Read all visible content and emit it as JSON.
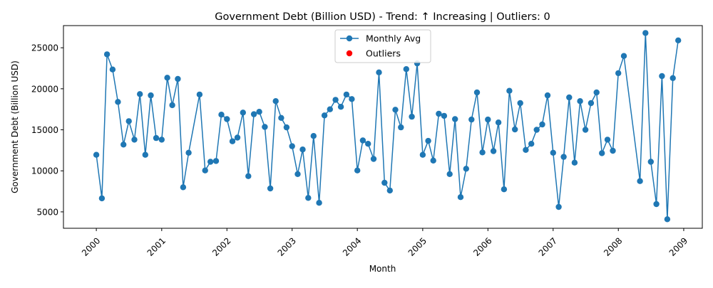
{
  "chart_data": {
    "type": "line",
    "title": "Government Debt (Billion USD) - Trend: ↑ Increasing | Outliers: 0",
    "xlabel": "Month",
    "ylabel": "Government Debt (Billion USD)",
    "xlim": [
      "1999-07-01",
      "2009-04-15"
    ],
    "ylim": [
      3000,
      27700
    ],
    "x_ticks": [
      "2000",
      "2001",
      "2002",
      "2003",
      "2004",
      "2005",
      "2006",
      "2007",
      "2008",
      "2009"
    ],
    "y_ticks": [
      "5000",
      "10000",
      "15000",
      "20000",
      "25000"
    ],
    "grid": false,
    "legend_position": "top-center",
    "legend": [
      "Monthly Avg",
      "Outliers"
    ],
    "colors": {
      "series": "#1f77b4",
      "outliers": "#ff0000"
    },
    "series": [
      {
        "name": "Monthly Avg",
        "x": [
          "2000-01-01",
          "2000-02-01",
          "2000-03-01",
          "2000-04-01",
          "2000-05-01",
          "2000-06-01",
          "2000-07-01",
          "2000-08-01",
          "2000-09-01",
          "2000-10-01",
          "2000-11-01",
          "2000-12-01",
          "2001-01-01",
          "2001-02-01",
          "2001-03-01",
          "2001-04-01",
          "2001-05-01",
          "2001-06-01",
          "2001-08-01",
          "2001-09-01",
          "2001-10-01",
          "2001-11-01",
          "2001-12-01",
          "2002-01-01",
          "2002-02-01",
          "2002-03-01",
          "2002-04-01",
          "2002-05-01",
          "2002-06-01",
          "2002-07-01",
          "2002-08-01",
          "2002-09-01",
          "2002-10-01",
          "2002-11-01",
          "2002-12-01",
          "2003-01-01",
          "2003-02-01",
          "2003-03-01",
          "2003-04-01",
          "2003-05-01",
          "2003-06-01",
          "2003-07-01",
          "2003-08-01",
          "2003-09-01",
          "2003-10-01",
          "2003-11-01",
          "2003-12-01",
          "2004-01-01",
          "2004-02-01",
          "2004-03-01",
          "2004-04-01",
          "2004-05-01",
          "2004-06-01",
          "2004-07-01",
          "2004-08-01",
          "2004-09-01",
          "2004-10-01",
          "2004-11-01",
          "2004-12-01",
          "2005-01-01",
          "2005-02-01",
          "2005-03-01",
          "2005-04-01",
          "2005-05-01",
          "2005-06-01",
          "2005-07-01",
          "2005-08-01",
          "2005-09-01",
          "2005-10-01",
          "2005-11-01",
          "2005-12-01",
          "2006-01-01",
          "2006-02-01",
          "2006-03-01",
          "2006-04-01",
          "2006-05-01",
          "2006-06-01",
          "2006-07-01",
          "2006-08-01",
          "2006-09-01",
          "2006-10-01",
          "2006-11-01",
          "2006-12-01",
          "2007-01-01",
          "2007-02-01",
          "2007-03-01",
          "2007-04-01",
          "2007-05-01",
          "2007-06-01",
          "2007-07-01",
          "2007-08-01",
          "2007-09-01",
          "2007-10-01",
          "2007-11-01",
          "2007-12-01",
          "2008-01-01",
          "2008-02-01",
          "2008-05-01",
          "2008-06-01",
          "2008-07-01",
          "2008-08-01",
          "2008-09-01",
          "2008-10-01",
          "2008-11-01",
          "2008-12-01"
        ],
        "values": [
          11950,
          6650,
          24200,
          22350,
          18400,
          13200,
          16050,
          13800,
          19350,
          11950,
          19200,
          14000,
          13800,
          21350,
          18000,
          21200,
          8000,
          12200,
          19300,
          10050,
          11100,
          11200,
          16850,
          16300,
          13600,
          14050,
          17100,
          9350,
          16900,
          17200,
          15350,
          7850,
          18500,
          16450,
          15300,
          13000,
          9600,
          12600,
          6700,
          14250,
          6100,
          16750,
          17500,
          18650,
          17800,
          19300,
          18750,
          10050,
          13700,
          13300,
          11450,
          22000,
          8550,
          7600,
          17450,
          15300,
          22400,
          16600,
          23100,
          11950,
          13650,
          11250,
          16950,
          16700,
          9600,
          16300,
          6800,
          10250,
          16250,
          19550,
          12250,
          16250,
          12400,
          15900,
          7750,
          19750,
          15050,
          18250,
          12550,
          13300,
          15000,
          15650,
          19200,
          12200,
          5600,
          11700,
          18950,
          11000,
          18500,
          15000,
          18250,
          19550,
          12150,
          13800,
          12450,
          21900,
          24000,
          8750,
          26800,
          11100,
          5950,
          21550,
          4100,
          21300,
          25900
        ]
      }
    ],
    "outliers": []
  }
}
